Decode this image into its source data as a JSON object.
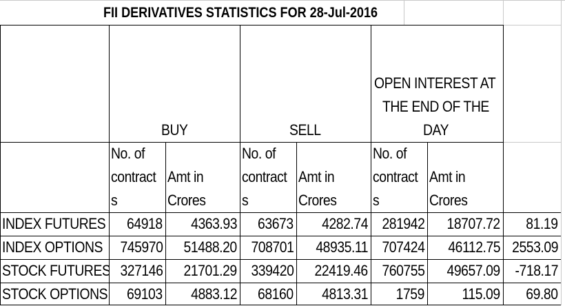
{
  "title": "FII DERIVATIVES STATISTICS FOR 28-Jul-2016",
  "group_headers": {
    "buy": "BUY",
    "sell": "SELL",
    "oi_line1": "OPEN INTEREST AT",
    "oi_line2": "THE END OF THE",
    "oi_line3": "DAY"
  },
  "sub_headers": {
    "contracts_line1": "No. of",
    "contracts_line2": "contract",
    "contracts_line3": "s",
    "amt_line1": "Amt in",
    "amt_line2": "Crores"
  },
  "rows": [
    {
      "label": "INDEX FUTURES",
      "buy_contracts": "64918",
      "buy_amt": "4363.93",
      "sell_contracts": "63673",
      "sell_amt": "4282.74",
      "oi_contracts": "281942",
      "oi_amt": "18707.72",
      "net": "81.19"
    },
    {
      "label": "INDEX OPTIONS",
      "buy_contracts": "745970",
      "buy_amt": "51488.20",
      "sell_contracts": "708701",
      "sell_amt": "48935.11",
      "oi_contracts": "707424",
      "oi_amt": "46112.75",
      "net": "2553.09"
    },
    {
      "label": "STOCK FUTURES",
      "buy_contracts": "327146",
      "buy_amt": "21701.29",
      "sell_contracts": "339420",
      "sell_amt": "22419.46",
      "oi_contracts": "760755",
      "oi_amt": "49657.09",
      "net": "-718.17"
    },
    {
      "label": "STOCK OPTIONS",
      "buy_contracts": "69103",
      "buy_amt": "4883.12",
      "sell_contracts": "68160",
      "sell_amt": "4813.31",
      "oi_contracts": "1759",
      "oi_amt": "115.09",
      "net": "69.80"
    }
  ]
}
